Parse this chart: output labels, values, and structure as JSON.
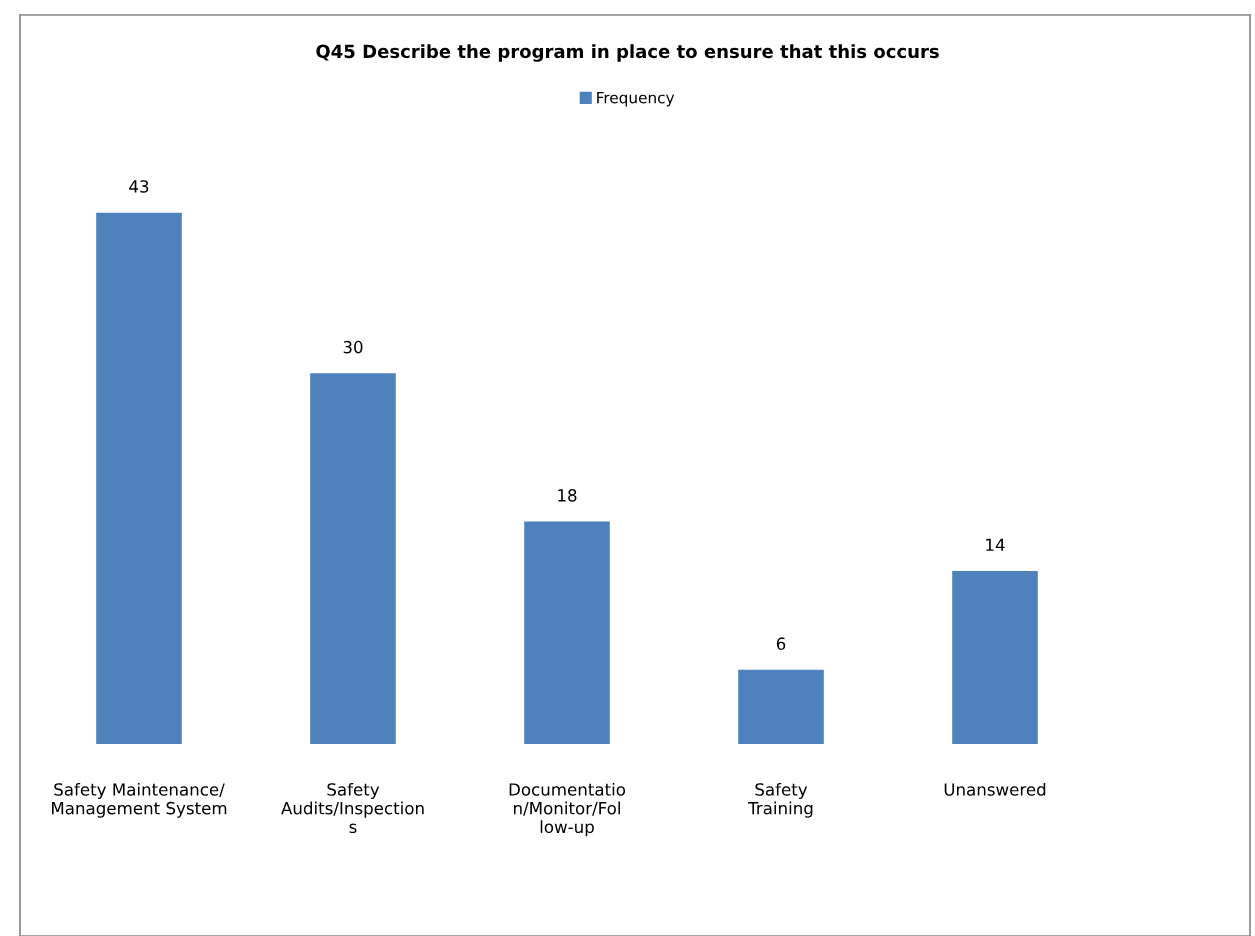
{
  "chart_data": {
    "type": "bar",
    "title": "Q45 Describe the program in place to ensure that this occurs",
    "categories": [
      "Safety Maintenance/\nManagement System",
      "Safety\nAudits/Inspection\ns",
      "Documentatio\nn/Monitor/Fol\nlow-up",
      "Safety\nTraining",
      "Unanswered"
    ],
    "series": [
      {
        "name": "Frequency",
        "color": "#4f81bd",
        "values": [
          43,
          30,
          18,
          6,
          14
        ]
      }
    ],
    "data_labels": true,
    "legend": "top",
    "grid": false
  }
}
